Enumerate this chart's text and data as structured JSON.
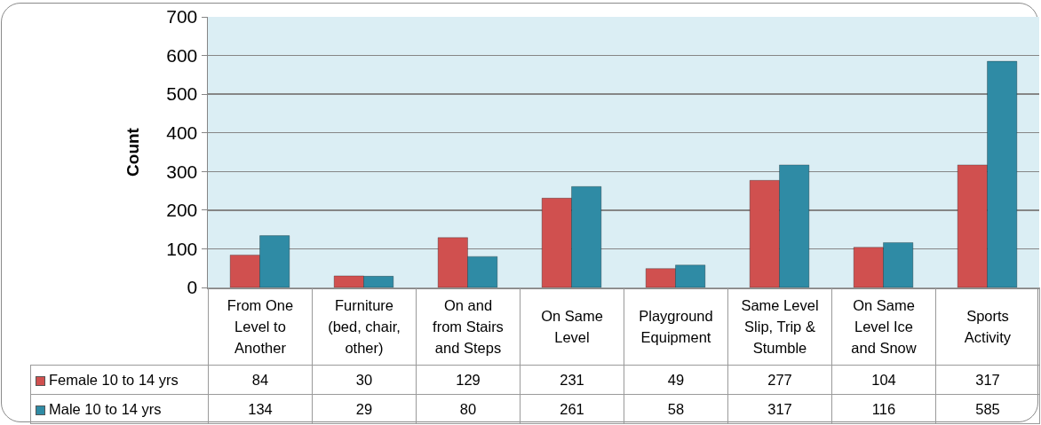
{
  "chart_data": {
    "type": "bar",
    "ylabel": "Count",
    "categories": [
      "From One Level to Another",
      "Furniture (bed, chair, other)",
      "On and from Stairs and Steps",
      "On Same Level",
      "Playground Equipment",
      "Same Level Slip, Trip & Stumble",
      "On Same Level Ice and Snow",
      "Sports Activity"
    ],
    "series": [
      {
        "name": "Female 10 to 14 yrs",
        "color": "#d0504f",
        "values": [
          84,
          30,
          129,
          231,
          49,
          277,
          104,
          317
        ]
      },
      {
        "name": "Male 10 to 14 yrs",
        "color": "#2f8ba5",
        "values": [
          134,
          29,
          80,
          261,
          58,
          317,
          116,
          585
        ]
      }
    ],
    "ylim": [
      0,
      700
    ],
    "yticks": [
      0,
      100,
      200,
      300,
      400,
      500,
      600,
      700
    ],
    "grid": "y",
    "legend": "bottom",
    "data_labels": true
  }
}
